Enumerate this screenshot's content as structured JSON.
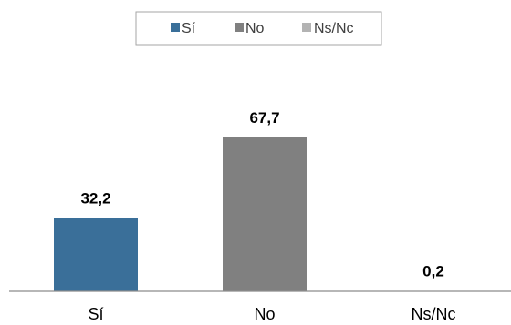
{
  "chart_data": {
    "type": "bar",
    "categories": [
      "Sí",
      "No",
      "Ns/Nc"
    ],
    "values": [
      32.2,
      67.7,
      0.2
    ],
    "value_labels": [
      "32,2",
      "67,7",
      "0,2"
    ],
    "colors": [
      "#3a6f99",
      "#808080",
      "#b3b3b3"
    ],
    "legend": {
      "position": "top",
      "entries": [
        "Sí",
        "No",
        "Ns/Nc"
      ]
    },
    "title": "",
    "xlabel": "",
    "ylabel": "",
    "ylim": [
      0,
      100
    ],
    "grid": false
  }
}
